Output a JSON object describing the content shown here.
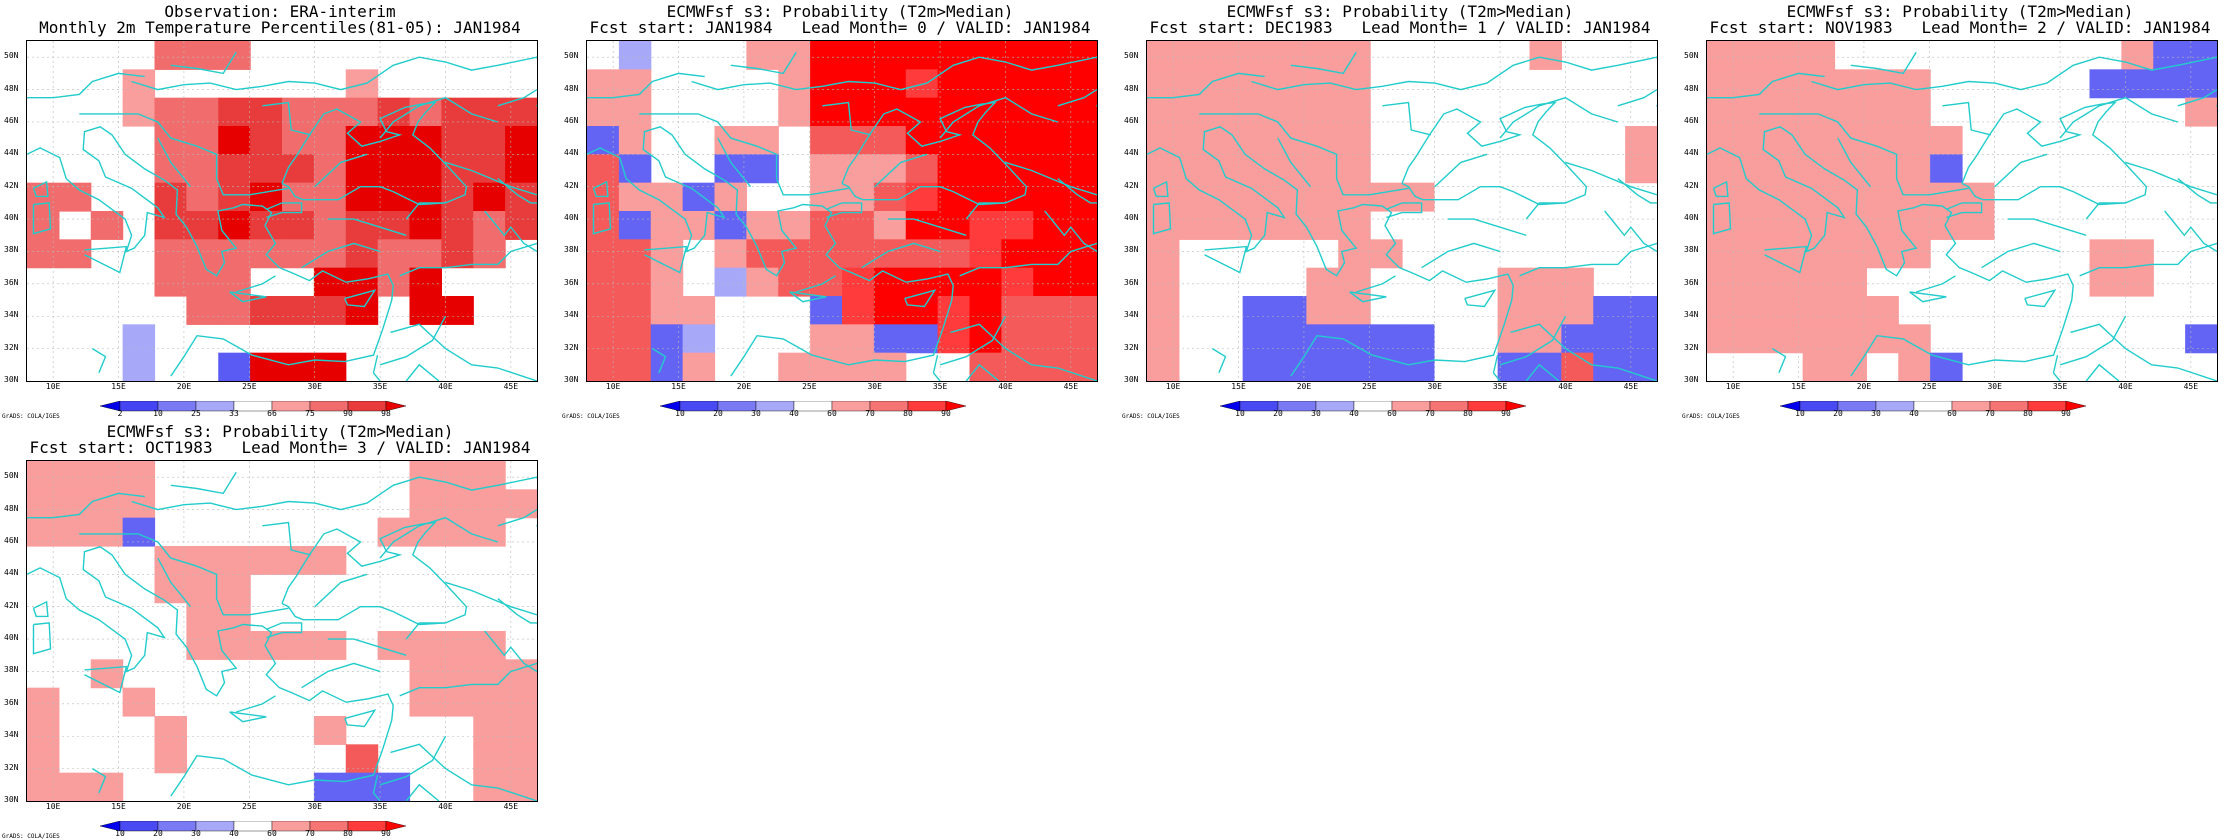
{
  "panels": [
    {
      "title1": "Observation: ERA-interim",
      "title2": "Monthly 2m Temperature Percentiles(81-05): JAN1984",
      "cb_labels": [
        "2",
        "10",
        "25",
        "33",
        "66",
        "75",
        "90",
        "98"
      ],
      "kind": "obs",
      "grid": [
        "0000222000000000",
        "0001000000100000",
        "0001223322232333",
        "0000224322444334",
        "0000223332444334",
        "2200323422444343",
        "2020334332334323",
        "2200222222322320",
        "0000222004424000",
        "0000022333404400",
        "0005000000000000",
        "0005006444000000"
      ]
    },
    {
      "title1": "ECMWFsf s3: Probability (T2m>Median)",
      "title2": "Fcst start: JAN1984   Lead Month= 0 / VALID: JAN1984",
      "cb_labels": [
        "10",
        "20",
        "30",
        "40",
        "60",
        "70",
        "80",
        "90"
      ],
      "kind": "prob",
      "grid": [
        "0100022666666666",
        "2200002666566666",
        "2200002666666666",
        "3200220444666666",
        "4300330222466666",
        "4223200224566666",
        "4322322442665566",
        "4420244444445666",
        "4420124456666566",
        "4422000356656444",
        "4431000223356444",
        "4432002222004444"
      ]
    },
    {
      "title1": "ECMWFsf s3: Probability (T2m>Median)",
      "title2": "Fcst start: DEC1983   Lead Month= 1 / VALID: JAN1984",
      "cb_labels": [
        "10",
        "20",
        "30",
        "40",
        "60",
        "70",
        "80",
        "90"
      ],
      "kind": "prob",
      "grid": [
        "2222222000002000",
        "2222222000000000",
        "2222222000000000",
        "2222222000000002",
        "2222222000000002",
        "2222222220000000",
        "2222222000000000",
        "2000002200000000",
        "2000022000022200",
        "2003322000022233",
        "2003333330022333",
        "2003333330033433"
      ]
    },
    {
      "title1": "ECMWFsf s3: Probability (T2m>Median)",
      "title2": "Fcst start: NOV1983   Lead Month= 2 / VALID: JAN1984",
      "cb_labels": [
        "10",
        "20",
        "30",
        "40",
        "60",
        "70",
        "80",
        "90"
      ],
      "kind": "prob",
      "grid": [
        "2222000000000233",
        "2222222000003333",
        "2222222000000002",
        "2222222200000000",
        "2222222300000000",
        "2222222220000000",
        "2222222220000000",
        "2222222000002200",
        "2222200000002200",
        "2222220000000000",
        "2222222000000003",
        "0002202300000000"
      ]
    },
    {
      "title1": "ECMWFsf s3: Probability (T2m>Median)",
      "title2": "Fcst start: OCT1983   Lead Month= 3 / VALID: JAN1984",
      "cb_labels": [
        "10",
        "20",
        "30",
        "40",
        "60",
        "70",
        "80",
        "90"
      ],
      "kind": "prob",
      "grid": [
        "2222000000002220",
        "2222000000002222",
        "2223000000022220",
        "0000222222000000",
        "0000222000000000",
        "0000022000000000",
        "0000022222022220",
        "0020000000002222",
        "2002000000002222",
        "2000200002000022",
        "2000200000400022",
        "2220000003330022"
      ]
    }
  ],
  "axes": {
    "ylabels": [
      "50N",
      "48N",
      "46N",
      "44N",
      "42N",
      "40N",
      "38N",
      "36N",
      "34N",
      "32N",
      "30N"
    ],
    "xlabels": [
      "10E",
      "15E",
      "20E",
      "25E",
      "30E",
      "35E",
      "40E",
      "45E"
    ]
  },
  "colors": {
    "obs": [
      "#ffffff",
      "#fa9d9d",
      "#f16d6d",
      "#e83c3c",
      "#e60000",
      "#a8a8f8",
      "#5a5af5",
      "#0000e8"
    ],
    "prob": [
      "#ffffff",
      "#a8a8f8",
      "#fa9d9d",
      "#6464f4",
      "#f55a5a",
      "#ff3b3b",
      "#ff0000",
      "#0000ee"
    ],
    "coast": "#22cccc"
  },
  "credit": "GrADS: COLA/IGES"
}
